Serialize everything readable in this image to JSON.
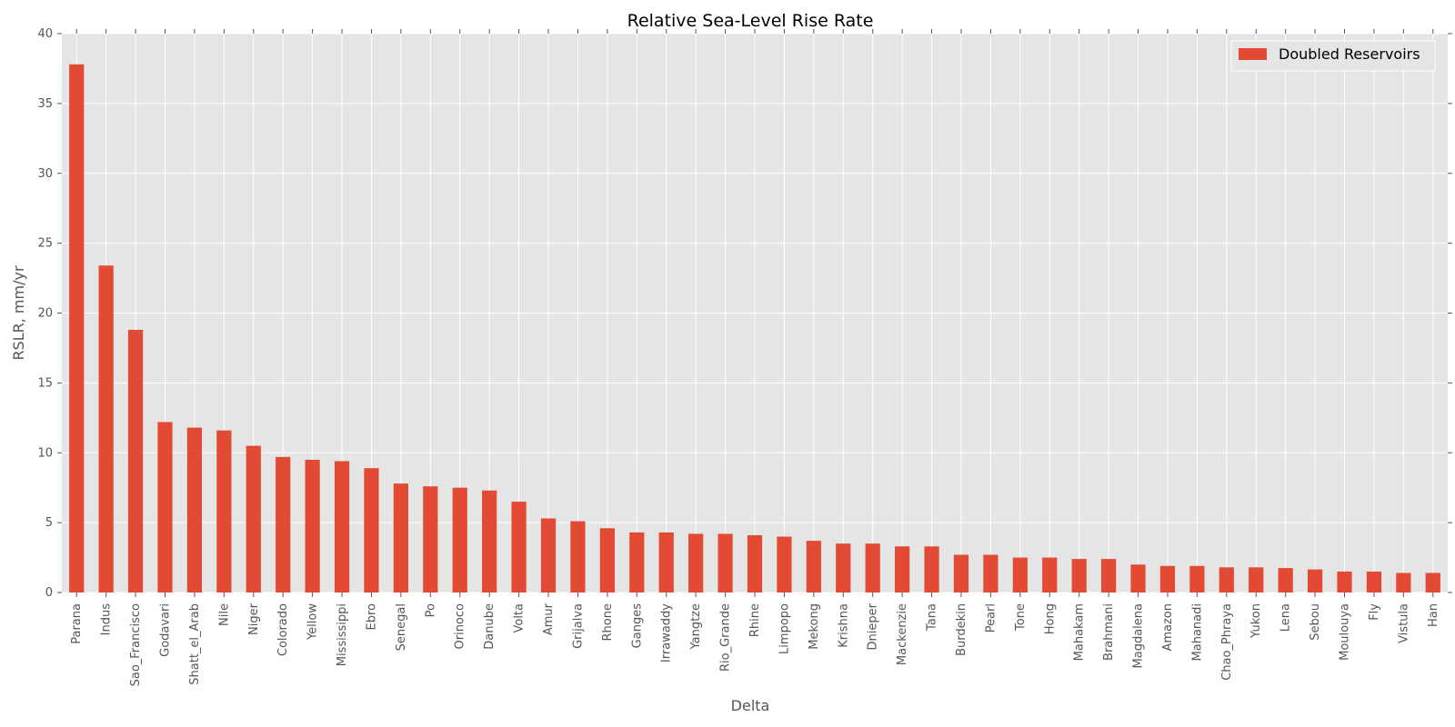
{
  "chart_data": {
    "type": "bar",
    "title": "Relative Sea-Level Rise Rate",
    "xlabel": "Delta",
    "ylabel": "RSLR, mm/yr",
    "ylim": [
      0,
      40
    ],
    "yticks": [
      0,
      5,
      10,
      15,
      20,
      25,
      30,
      35,
      40
    ],
    "grid": true,
    "legend_position": "top-right",
    "bar_color": "#E24A33",
    "background_color": "#E5E5E5",
    "categories": [
      "Parana",
      "Indus",
      "Sao_Francisco",
      "Godavari",
      "Shatt_el_Arab",
      "Nile",
      "Niger",
      "Colorado",
      "Yellow",
      "Mississippi",
      "Ebro",
      "Senegal",
      "Po",
      "Orinoco",
      "Danube",
      "Volta",
      "Amur",
      "Grijalva",
      "Rhone",
      "Ganges",
      "Irrawaddy",
      "Yangtze",
      "Rio_Grande",
      "Rhine",
      "Limpopo",
      "Mekong",
      "Krishna",
      "Dnieper",
      "Mackenzie",
      "Tana",
      "Burdekin",
      "Pearl",
      "Tone",
      "Hong",
      "Mahakam",
      "Brahmani",
      "Magdalena",
      "Amazon",
      "Mahanadi",
      "Chao_Phraya",
      "Yukon",
      "Lena",
      "Sebou",
      "Moulouya",
      "Fly",
      "Vistula",
      "Han"
    ],
    "series": [
      {
        "name": "Doubled Reservoirs",
        "values": [
          37.8,
          23.4,
          18.8,
          12.2,
          11.8,
          11.6,
          10.5,
          9.7,
          9.5,
          9.4,
          8.9,
          7.8,
          7.6,
          7.5,
          7.3,
          6.5,
          5.3,
          5.1,
          4.6,
          4.3,
          4.3,
          4.2,
          4.2,
          4.1,
          4.0,
          3.7,
          3.5,
          3.5,
          3.3,
          3.3,
          2.7,
          2.7,
          2.5,
          2.5,
          2.4,
          2.4,
          2.0,
          1.9,
          1.9,
          1.8,
          1.8,
          1.75,
          1.65,
          1.5,
          1.5,
          1.4,
          1.4
        ]
      }
    ]
  }
}
